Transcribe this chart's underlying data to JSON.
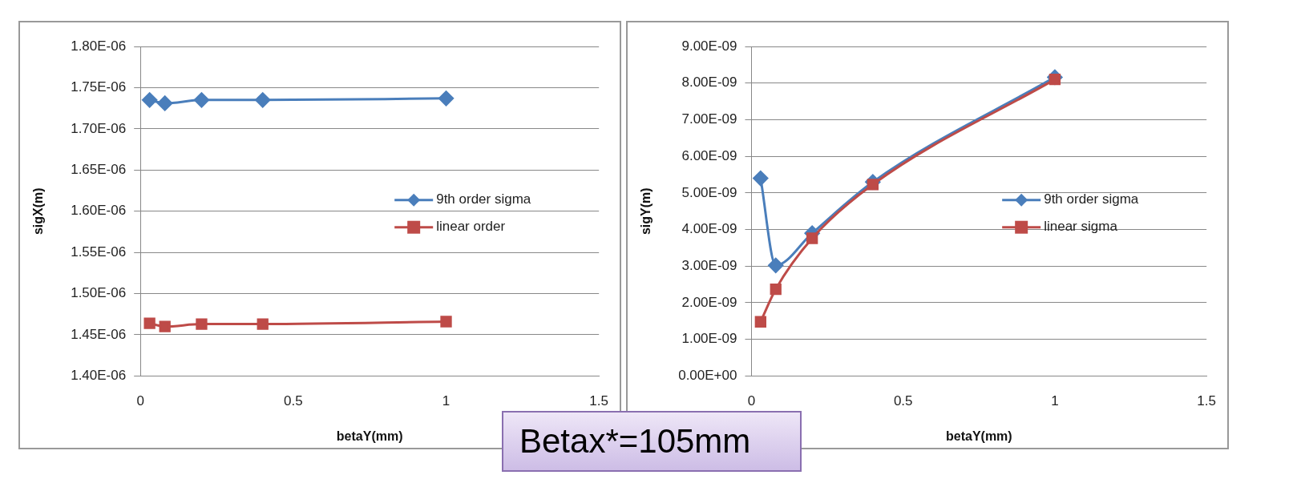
{
  "chart_data": [
    {
      "type": "line",
      "xlabel": "betaY(mm)",
      "ylabel": "sigX(m)",
      "xlim": [
        0,
        1.5
      ],
      "xticks": [
        0,
        0.5,
        1,
        1.5
      ],
      "ylim": [
        1.4e-06,
        1.8e-06
      ],
      "yticks": [
        {
          "value": 1.4e-06,
          "label": "1.40E-06"
        },
        {
          "value": 1.45e-06,
          "label": "1.45E-06"
        },
        {
          "value": 1.5e-06,
          "label": "1.50E-06"
        },
        {
          "value": 1.55e-06,
          "label": "1.55E-06"
        },
        {
          "value": 1.6e-06,
          "label": "1.60E-06"
        },
        {
          "value": 1.65e-06,
          "label": "1.65E-06"
        },
        {
          "value": 1.7e-06,
          "label": "1.70E-06"
        },
        {
          "value": 1.75e-06,
          "label": "1.75E-06"
        },
        {
          "value": 1.8e-06,
          "label": "1.80E-06"
        }
      ],
      "x": [
        0.03,
        0.08,
        0.2,
        0.4,
        1
      ],
      "grid": "y",
      "legend": "right",
      "series": [
        {
          "name": "9th order sigma",
          "color": "#4a7ebb",
          "marker": "diamond",
          "values": [
            1.735e-06,
            1.731e-06,
            1.735e-06,
            1.735e-06,
            1.737e-06
          ]
        },
        {
          "name": "linear order",
          "color": "#be4b48",
          "marker": "square",
          "values": [
            1.464e-06,
            1.46e-06,
            1.463e-06,
            1.463e-06,
            1.466e-06
          ]
        }
      ]
    },
    {
      "type": "line",
      "xlabel": "betaY(mm)",
      "ylabel": "sigY(m)",
      "xlim": [
        0,
        1.5
      ],
      "xticks": [
        0,
        0.5,
        1,
        1.5
      ],
      "ylim": [
        0,
        9e-09
      ],
      "yticks": [
        {
          "value": 0,
          "label": "0.00E+00"
        },
        {
          "value": 1e-09,
          "label": "1.00E-09"
        },
        {
          "value": 2e-09,
          "label": "2.00E-09"
        },
        {
          "value": 3e-09,
          "label": "3.00E-09"
        },
        {
          "value": 4e-09,
          "label": "4.00E-09"
        },
        {
          "value": 5e-09,
          "label": "5.00E-09"
        },
        {
          "value": 6e-09,
          "label": "6.00E-09"
        },
        {
          "value": 7e-09,
          "label": "7.00E-09"
        },
        {
          "value": 8e-09,
          "label": "8.00E-09"
        },
        {
          "value": 9e-09,
          "label": "9.00E-09"
        }
      ],
      "x": [
        0.03,
        0.08,
        0.2,
        0.4,
        1
      ],
      "grid": "y",
      "legend": "right",
      "annotations": [
        "Betax*=105mm"
      ],
      "series": [
        {
          "name": "9th order sigma",
          "color": "#4a7ebb",
          "marker": "diamond",
          "values": [
            5.4e-09,
            3.02e-09,
            3.9e-09,
            5.3e-09,
            8.16e-09
          ]
        },
        {
          "name": "linear sigma",
          "color": "#be4b48",
          "marker": "square",
          "values": [
            1.48e-09,
            2.37e-09,
            3.76e-09,
            5.23e-09,
            8.1e-09
          ]
        }
      ]
    }
  ]
}
